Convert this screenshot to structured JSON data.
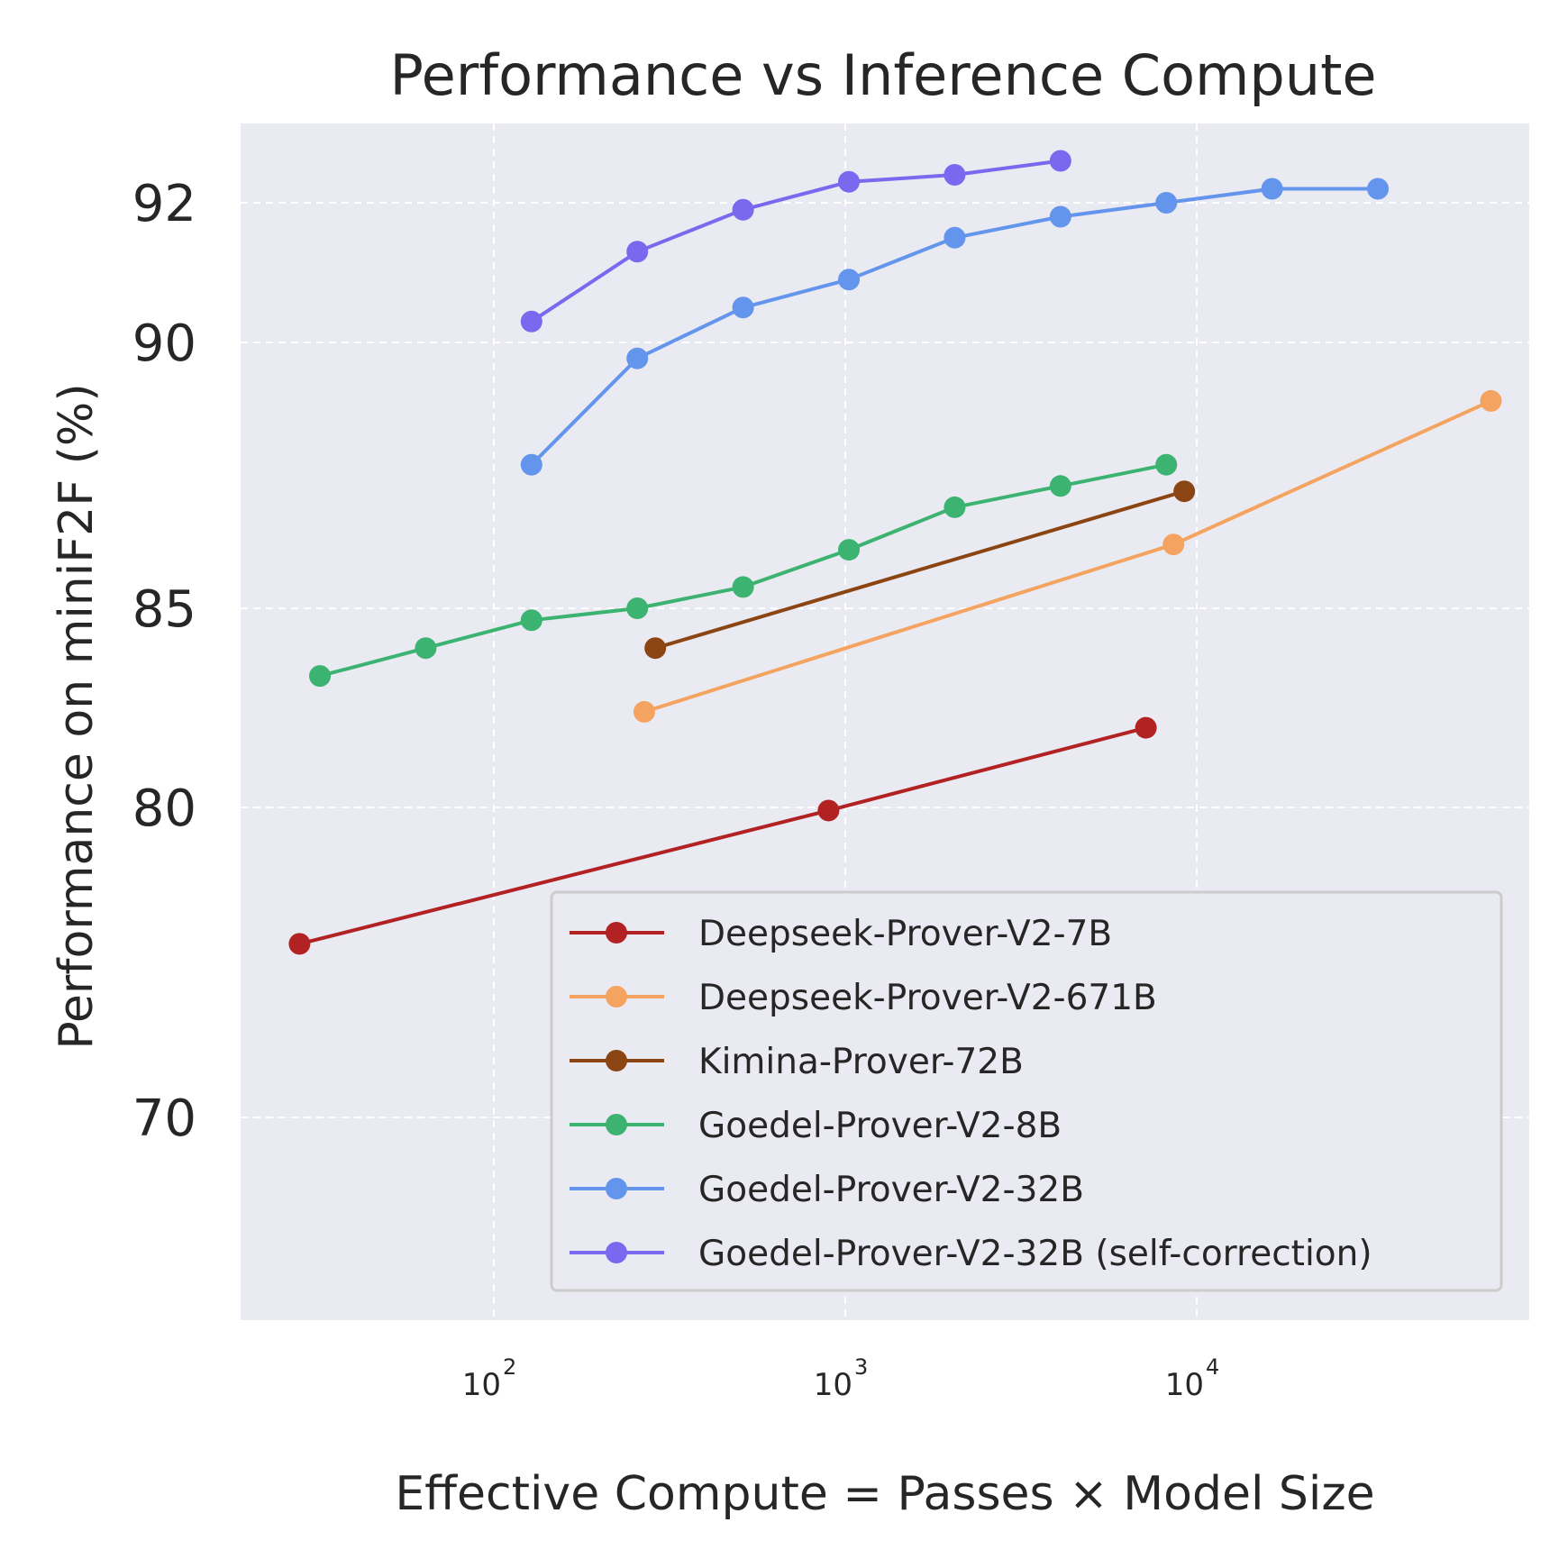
{
  "chart_data": {
    "type": "line",
    "title": "Performance vs Inference Compute",
    "xlabel": "Effective Compute = Passes × Model Size",
    "ylabel": "Performance on miniF2F (%)",
    "x_scale": "log",
    "xlim": [
      18,
      80000
    ],
    "xticks": [
      {
        "value": 100,
        "base": "10",
        "exp": "2"
      },
      {
        "value": 1000,
        "base": "10",
        "exp": "3"
      },
      {
        "value": 10000,
        "base": "10",
        "exp": "4"
      }
    ],
    "yticks": [
      70,
      80,
      85,
      90,
      92
    ],
    "grid": true,
    "legend_position": "lower-right",
    "series": [
      {
        "name": "Deepseek-Prover-V2-7B",
        "color": "#b22222",
        "x": [
          28,
          896,
          7168
        ],
        "y": [
          75.6,
          79.9,
          82.0
        ]
      },
      {
        "name": "Deepseek-Prover-V2-671B",
        "color": "#f4a460",
        "x": [
          268,
          8588,
          68720
        ],
        "y": [
          82.4,
          86.2,
          88.9
        ]
      },
      {
        "name": "Kimina-Prover-72B",
        "color": "#8b4513",
        "x": [
          288,
          9216
        ],
        "y": [
          84.0,
          87.2
        ]
      },
      {
        "name": "Goedel-Prover-V2-8B",
        "color": "#3cb371",
        "x": [
          32,
          64,
          128,
          256,
          512,
          1024,
          2048,
          4096,
          8192
        ],
        "y": [
          83.3,
          84.0,
          84.7,
          85.0,
          85.4,
          86.1,
          86.9,
          87.3,
          87.7
        ]
      },
      {
        "name": "Goedel-Prover-V2-32B",
        "color": "#6495ed",
        "x": [
          128,
          256,
          512,
          1024,
          2048,
          4096,
          8192,
          16384,
          32768
        ],
        "y": [
          87.7,
          89.7,
          90.5,
          90.9,
          91.5,
          91.8,
          92.0,
          92.2,
          92.2
        ]
      },
      {
        "name": "Goedel-Prover-V2-32B (self-correction)",
        "color": "#7b68ee",
        "x": [
          128,
          256,
          512,
          1024,
          2048,
          4096
        ],
        "y": [
          90.3,
          91.3,
          91.9,
          92.3,
          92.4,
          92.6
        ]
      }
    ]
  }
}
